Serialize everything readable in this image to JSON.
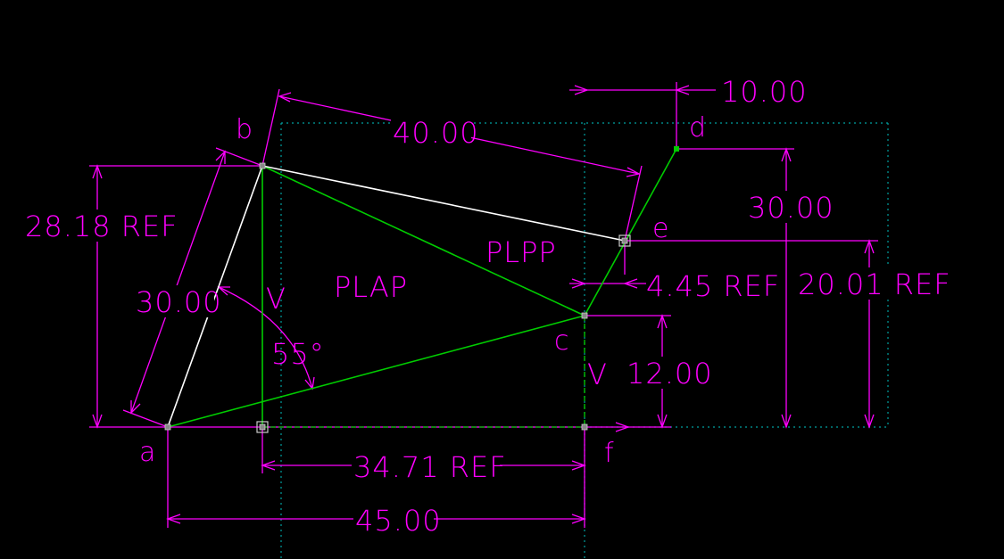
{
  "points": {
    "a": "a",
    "b": "b",
    "c": "c",
    "d": "d",
    "e": "e",
    "f": "f"
  },
  "regions": {
    "plap": "PLAP",
    "plpp": "PLPP"
  },
  "markers": {
    "v_left": "V",
    "v_right": "V"
  },
  "dimensions": {
    "ab_length": "30.00",
    "be_length": "40.00",
    "d_offset": "10.00",
    "d_height": "30.00",
    "e_height": "20.01 REF",
    "e_offset": "4.45 REF",
    "c_height": "12.00",
    "b_height": "28.18 REF",
    "af_length": "45.00",
    "vf_length": "34.71 REF",
    "angle": "55°"
  },
  "colors": {
    "background": "#000000",
    "dimension": "#ff00ff",
    "geometry_white": "#ffffff",
    "geometry_green": "#00cc00",
    "construction": "#00a0a0"
  }
}
